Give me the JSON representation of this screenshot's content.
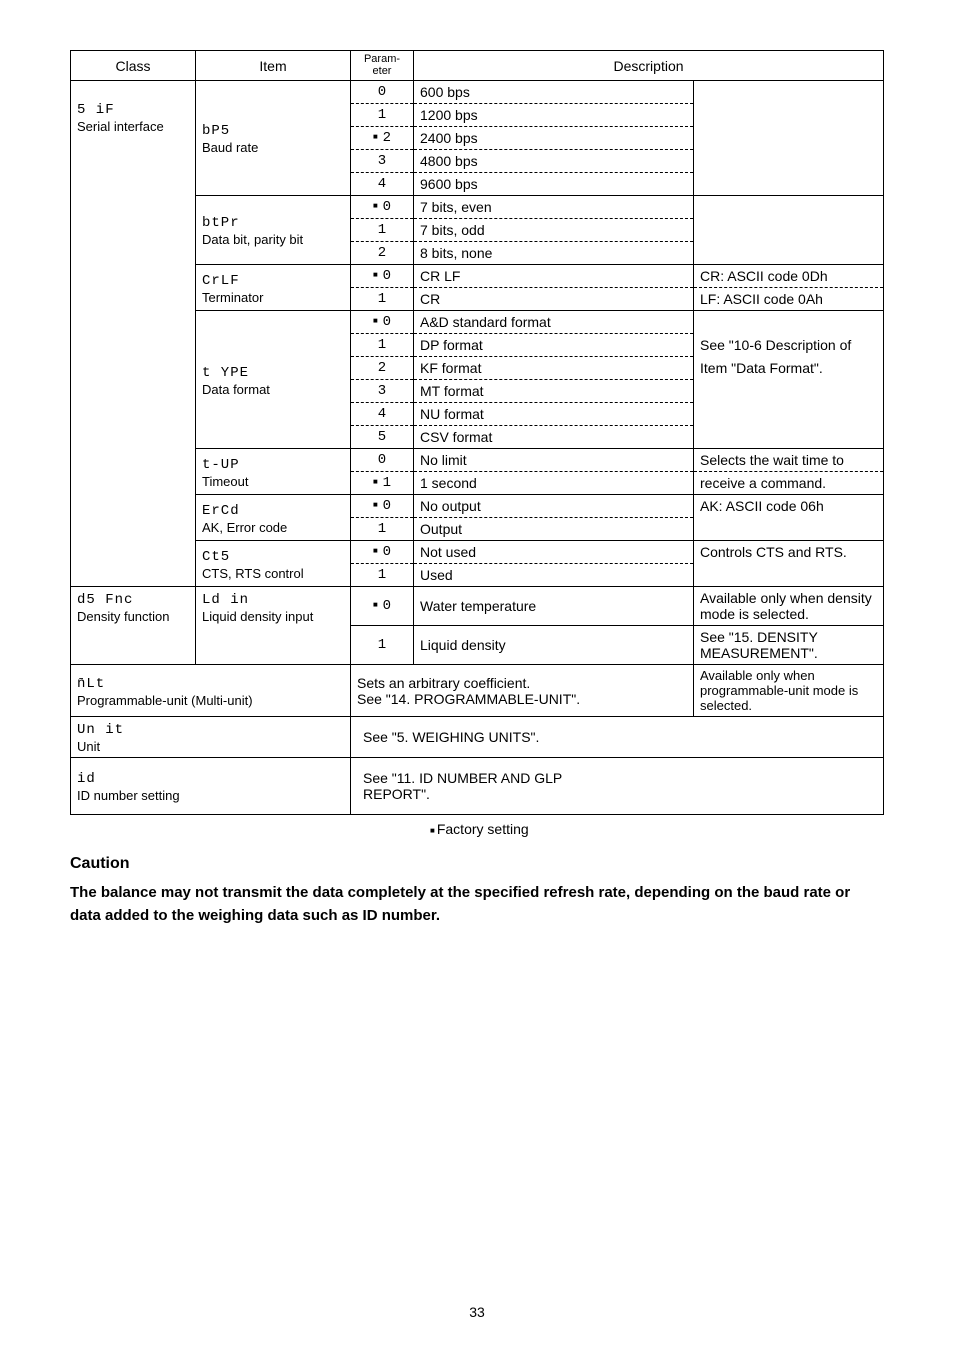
{
  "header": {
    "class": "Class",
    "item": "Item",
    "param": "Param-\neter",
    "desc": "Description"
  },
  "sif": {
    "class_seg": "5 iF",
    "class_name": "Serial interface",
    "items": {
      "bps": {
        "seg": "bP5",
        "label": "Baud rate",
        "rows": [
          {
            "p": "0",
            "sq": false,
            "d": "600 bps"
          },
          {
            "p": "1",
            "sq": false,
            "d": "1200 bps"
          },
          {
            "p": "2",
            "sq": true,
            "d": "2400 bps"
          },
          {
            "p": "3",
            "sq": false,
            "d": "4800 bps"
          },
          {
            "p": "4",
            "sq": false,
            "d": "9600 bps"
          }
        ]
      },
      "btpr": {
        "seg": "btPr",
        "label": "Data bit, parity bit",
        "rows": [
          {
            "p": "0",
            "sq": true,
            "d": "7 bits, even"
          },
          {
            "p": "1",
            "sq": false,
            "d": "7 bits, odd"
          },
          {
            "p": "2",
            "sq": false,
            "d": "8 bits, none"
          }
        ]
      },
      "crlf": {
        "seg": "CrLF",
        "label": "Terminator",
        "rows": [
          {
            "p": "0",
            "sq": true,
            "d": "CR LF",
            "r": "CR: ASCII code 0Dh"
          },
          {
            "p": "1",
            "sq": false,
            "d": "CR",
            "r": "LF: ASCII code 0Ah"
          }
        ]
      },
      "type": {
        "seg": "t YPE",
        "label": "Data format",
        "rows": [
          {
            "p": "0",
            "sq": true,
            "d": "A&D standard format"
          },
          {
            "p": "1",
            "sq": false,
            "d": "DP format"
          },
          {
            "p": "2",
            "sq": false,
            "d": "KF format"
          },
          {
            "p": "3",
            "sq": false,
            "d": "MT format"
          },
          {
            "p": "4",
            "sq": false,
            "d": "NU format"
          },
          {
            "p": "5",
            "sq": false,
            "d": "CSV format"
          }
        ],
        "right1": "See \"10-6 Description of",
        "right2": "Item \"Data Format\"."
      },
      "tup": {
        "seg": "t-UP",
        "label": "Timeout",
        "rows": [
          {
            "p": "0",
            "sq": false,
            "d": "No limit",
            "r": "Selects the wait time to"
          },
          {
            "p": "1",
            "sq": true,
            "d": "1 second",
            "r": "receive a command."
          }
        ]
      },
      "ercd": {
        "seg": "ErCd",
        "label": "AK, Error code",
        "rows": [
          {
            "p": "0",
            "sq": true,
            "d": "No output"
          },
          {
            "p": "1",
            "sq": false,
            "d": "Output"
          }
        ],
        "right": "AK: ASCII  code 06h"
      },
      "cts": {
        "seg": "Ct5",
        "label": "CTS, RTS control",
        "rows": [
          {
            "p": "0",
            "sq": true,
            "d": "Not used"
          },
          {
            "p": "1",
            "sq": false,
            "d": "Used"
          }
        ],
        "right": "Controls CTS and RTS."
      }
    }
  },
  "dsfnc": {
    "class_seg": "d5 Fnc",
    "class_name": "Density function",
    "item_seg": "Ld in",
    "item_label": "Liquid density input",
    "rows": [
      {
        "p": "0",
        "sq": true,
        "d": "Water temperature",
        "r": "Available only when density mode is selected."
      },
      {
        "p": "1",
        "sq": false,
        "d": "Liquid density",
        "r": "See \"15. DENSITY MEASUREMENT\"."
      }
    ]
  },
  "nlt": {
    "seg": "n̄Lt",
    "label": "Programmable-unit (Multi-unit)",
    "mid": "Sets an arbitrary coefficient.\nSee \"14. PROGRAMMABLE-UNIT\".",
    "right": "Available only when programmable-unit mode is selected."
  },
  "unit": {
    "seg": "Un it",
    "label": "Unit",
    "desc": "See \"5. WEIGHING UNITS\"."
  },
  "id": {
    "seg": "id",
    "label": "ID number setting",
    "desc": "See \"11. ID NUMBER AND GLP REPORT\"."
  },
  "factory": "Factory setting",
  "caution_h": "Caution",
  "caution_body": "The balance may not transmit the data completely at the specified refresh rate, depending on the baud rate or data added to the weighing data such as ID number.",
  "page_num": "33"
}
